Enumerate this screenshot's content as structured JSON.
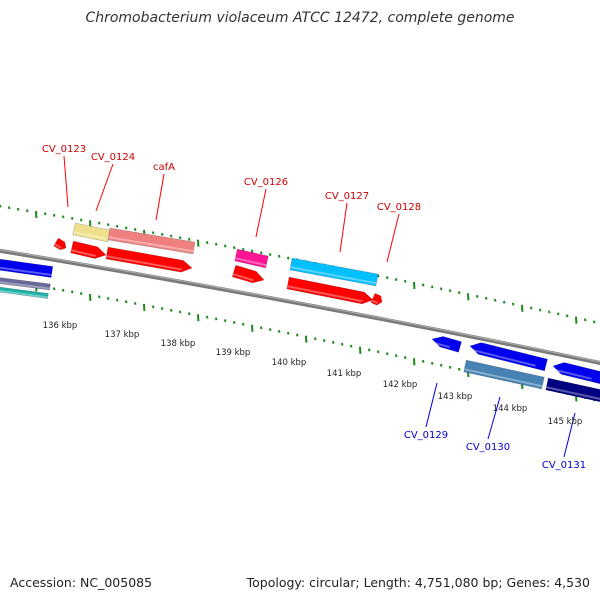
{
  "header": {
    "title": "Chromobacterium violaceum ATCC 12472, complete genome"
  },
  "footer": {
    "accession": "Accession: NC_005085",
    "summary": "Topology: circular; Length: 4,751,080 bp; Genes: 4,530"
  },
  "colors": {
    "tick_green": "#1a8a1a",
    "forward_label": "#cc0000",
    "reverse_label": "#0000cc",
    "backbone": "#888888"
  },
  "scale": {
    "ticks": [
      {
        "label": "136 kbp"
      },
      {
        "label": "137 kbp"
      },
      {
        "label": "138 kbp"
      },
      {
        "label": "139 kbp"
      },
      {
        "label": "140 kbp"
      },
      {
        "label": "141 kbp"
      },
      {
        "label": "142 kbp"
      },
      {
        "label": "143 kbp"
      },
      {
        "label": "144 kbp"
      },
      {
        "label": "145 kbp"
      }
    ]
  },
  "genes": {
    "forward": [
      {
        "label": "CV_0123",
        "color": "#ff0000"
      },
      {
        "label": "CV_0124",
        "color": "#ff0000"
      },
      {
        "label": "cafA",
        "color": "#ff0000"
      },
      {
        "label": "CV_0126",
        "color": "#ff0000"
      },
      {
        "label": "CV_0127",
        "color": "#ff0000"
      },
      {
        "label": "CV_0128",
        "color": "#ff0000"
      }
    ],
    "reverse": [
      {
        "label": "CV_0129",
        "color": "#0000ee"
      },
      {
        "label": "CV_0130",
        "color": "#0000ee"
      },
      {
        "label": "CV_0131",
        "color": "#0000ee"
      }
    ]
  },
  "features": [
    {
      "name": "feature-yellow",
      "color": "#f0e08c"
    },
    {
      "name": "feature-salmon",
      "color": "#f08080"
    },
    {
      "name": "feature-magenta",
      "color": "#ff1493"
    },
    {
      "name": "feature-lightblue",
      "color": "#00bfff"
    },
    {
      "name": "feature-steelblue",
      "color": "#4682b4"
    },
    {
      "name": "feature-navy",
      "color": "#000080"
    }
  ]
}
